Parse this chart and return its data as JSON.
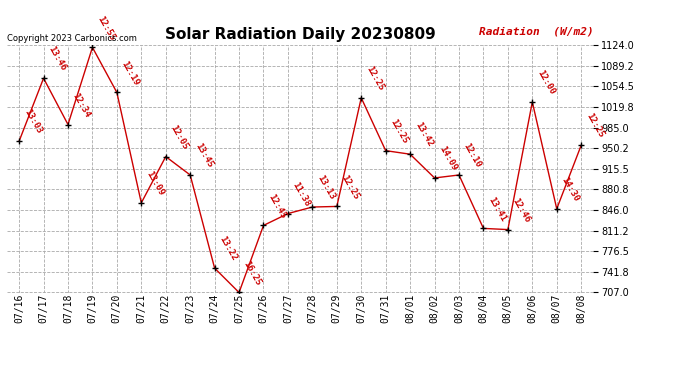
{
  "title": "Solar Radiation Daily 20230809",
  "ylabel": "Radiation  (W/m2)",
  "copyright": "Copyright 2023 Carbonics.com",
  "dates": [
    "07/16",
    "07/17",
    "07/18",
    "07/19",
    "07/20",
    "07/21",
    "07/22",
    "07/23",
    "07/24",
    "07/25",
    "07/26",
    "07/27",
    "07/28",
    "07/29",
    "07/30",
    "07/31",
    "08/01",
    "08/02",
    "08/03",
    "08/04",
    "08/05",
    "08/06",
    "08/07",
    "08/08"
  ],
  "values": [
    962,
    1068,
    990,
    1120,
    1044,
    858,
    936,
    905,
    748,
    707,
    820,
    840,
    851,
    852,
    1035,
    946,
    940,
    900,
    905,
    815,
    813,
    1028,
    848,
    955
  ],
  "labels": [
    "13:03",
    "13:46",
    "12:34",
    "12:55",
    "12:19",
    "13:09",
    "12:05",
    "13:45",
    "13:22",
    "16:25",
    "12:45",
    "11:38",
    "13:13",
    "12:25",
    "12:25",
    "12:25",
    "13:42",
    "14:09",
    "12:10",
    "13:41",
    "12:46",
    "12:00",
    "14:30",
    "12:25"
  ],
  "ylim_min": 707.0,
  "ylim_max": 1124.0,
  "yticks": [
    707.0,
    741.8,
    776.5,
    811.2,
    846.0,
    880.8,
    915.5,
    950.2,
    985.0,
    1019.8,
    1054.5,
    1089.2,
    1124.0
  ],
  "line_color": "#cc0000",
  "marker_color": "black",
  "label_color": "#cc0000",
  "bg_color": "white",
  "grid_color": "#aaaaaa",
  "title_fontsize": 11,
  "tick_fontsize": 7,
  "annotation_fontsize": 6.5,
  "copyright_fontsize": 6,
  "ylabel_fontsize": 8
}
